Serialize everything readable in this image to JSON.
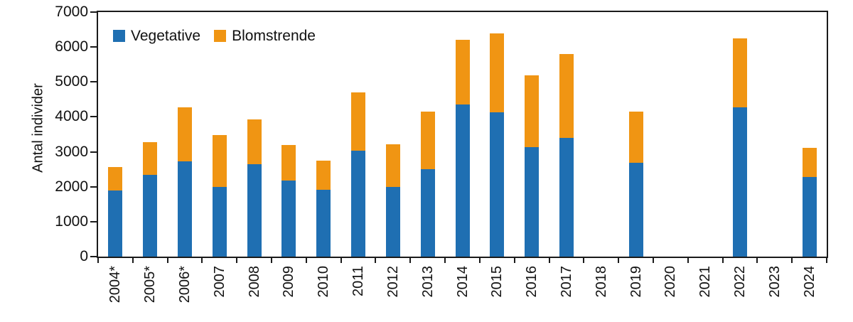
{
  "chart": {
    "y_axis_title": "Antal individer"
  },
  "chart_data": {
    "type": "bar",
    "stacked": true,
    "title": "",
    "xlabel": "",
    "ylabel": "Antal individer",
    "ylim": [
      0,
      7000
    ],
    "yticks": [
      0,
      1000,
      2000,
      3000,
      4000,
      5000,
      6000,
      7000
    ],
    "grid": false,
    "legend_position": "top-left-inside",
    "categories": [
      "2004*",
      "2005*",
      "2006*",
      "2007",
      "2008",
      "2009",
      "2010",
      "2011",
      "2012",
      "2013",
      "2014",
      "2015",
      "2016",
      "2017",
      "2018",
      "2019",
      "2020",
      "2021",
      "2022",
      "2023",
      "2024"
    ],
    "series": [
      {
        "name": "Vegetative",
        "color": "#1f6fb2",
        "values": [
          1890,
          2340,
          2720,
          2000,
          2650,
          2170,
          1920,
          3040,
          2000,
          2500,
          4360,
          4130,
          3140,
          3390,
          0,
          2680,
          0,
          0,
          4280,
          0,
          2290
        ]
      },
      {
        "name": "Blomstrende",
        "color": "#f09513",
        "values": [
          680,
          930,
          1550,
          1480,
          1280,
          1030,
          830,
          1660,
          1210,
          1660,
          1840,
          2250,
          2040,
          2420,
          0,
          1470,
          0,
          0,
          1970,
          0,
          830
        ]
      }
    ],
    "axis_color": "#1a1a1a"
  }
}
